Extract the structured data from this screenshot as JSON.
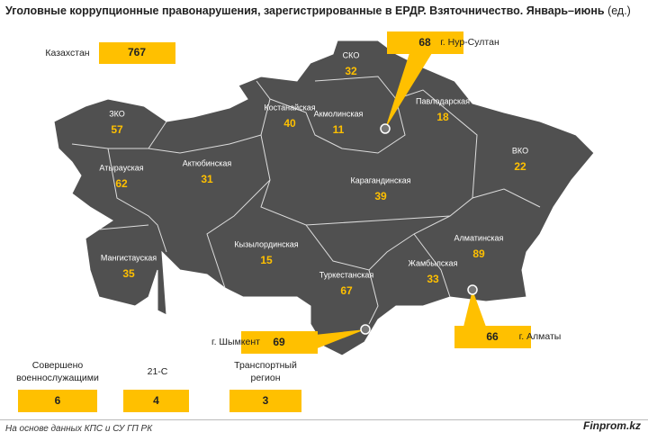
{
  "title": "Уголовные коррупционные правонарушения, зарегистрированные в ЕРДР. Взяточничество. Январь–июнь",
  "unit": "(ед.)",
  "total": {
    "label": "Казахстан",
    "value": 767
  },
  "regions": [
    {
      "name": "ЗКО",
      "value": 57
    },
    {
      "name": "Атырауская",
      "value": 62
    },
    {
      "name": "Актюбинская",
      "value": 31
    },
    {
      "name": "Костанайская",
      "value": 40
    },
    {
      "name": "СКО",
      "value": 32
    },
    {
      "name": "Акмолинская",
      "value": 11
    },
    {
      "name": "Павлодарская",
      "value": 18
    },
    {
      "name": "ВКО",
      "value": 22
    },
    {
      "name": "Карагандинская",
      "value": 39
    },
    {
      "name": "Мангистауская",
      "value": 35
    },
    {
      "name": "Кызылординская",
      "value": 15
    },
    {
      "name": "Туркестанская",
      "value": 67
    },
    {
      "name": "Жамбылская",
      "value": 33
    },
    {
      "name": "Алматинская",
      "value": 89
    }
  ],
  "cities": [
    {
      "name": "г. Нур-Султан",
      "value": 68
    },
    {
      "name": "г. Шымкент",
      "value": 69
    },
    {
      "name": "г. Алматы",
      "value": 66
    }
  ],
  "other": [
    {
      "label": "Совершено военнослужащими",
      "value": 6
    },
    {
      "label": "21-С",
      "value": 4
    },
    {
      "label": "Транспортный регион",
      "value": 3
    }
  ],
  "source": "На основе данных КПС и СУ ГП РК",
  "brand": "Finprom.kz"
}
